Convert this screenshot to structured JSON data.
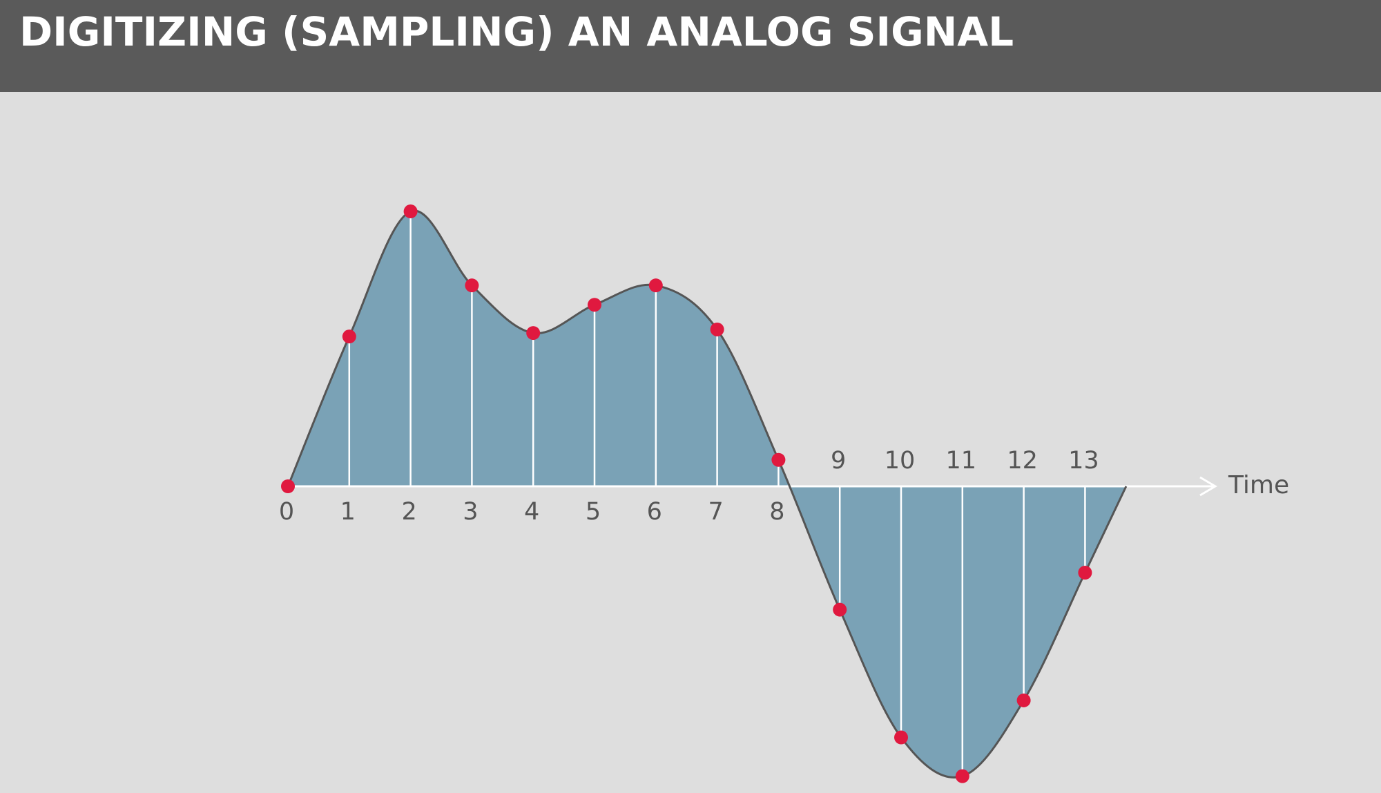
{
  "chart_data": {
    "type": "line",
    "title": "DIGITIZING (SAMPLING) AN ANALOG SIGNAL",
    "x_label": "Time",
    "x": [
      0,
      1,
      2,
      3,
      4,
      5,
      6,
      7,
      8,
      9,
      10,
      11,
      12,
      13
    ],
    "values": [
      0,
      170,
      312,
      228,
      174,
      206,
      228,
      178,
      30,
      -140,
      -285,
      -329,
      -243,
      -98
    ],
    "color": "#e0193f",
    "fill": "#7aa2b6"
  }
}
